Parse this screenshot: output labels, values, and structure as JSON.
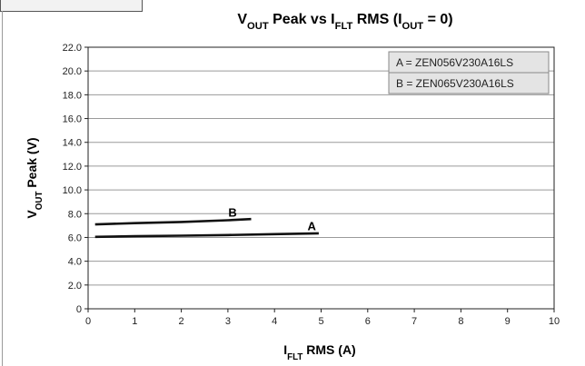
{
  "chart_data": {
    "type": "line",
    "title": {
      "parts": [
        {
          "t": "V",
          "sub": false
        },
        {
          "t": "OUT",
          "sub": true
        },
        {
          "t": " Peak vs I",
          "sub": false
        },
        {
          "t": "FLT",
          "sub": true
        },
        {
          "t": " RMS (I",
          "sub": false
        },
        {
          "t": "OUT",
          "sub": true
        },
        {
          "t": " = 0)",
          "sub": false
        }
      ]
    },
    "xlabel": {
      "parts": [
        {
          "t": "I",
          "sub": false
        },
        {
          "t": "FLT",
          "sub": true
        },
        {
          "t": " RMS (A)",
          "sub": false
        }
      ]
    },
    "ylabel": {
      "parts": [
        {
          "t": "V",
          "sub": false
        },
        {
          "t": "OUT",
          "sub": true
        },
        {
          "t": " Peak (V)",
          "sub": false
        }
      ]
    },
    "xlim": [
      0,
      10
    ],
    "ylim": [
      0,
      22
    ],
    "x_ticks": [
      "0",
      "1",
      "2",
      "3",
      "4",
      "5",
      "6",
      "7",
      "8",
      "9",
      "10"
    ],
    "y_ticks": [
      "0",
      "2.0",
      "4.0",
      "6.0",
      "8.0",
      "10.0",
      "12.0",
      "14.0",
      "16.0",
      "18.0",
      "20.0",
      "22.0"
    ],
    "grid": "horizontal",
    "legend": {
      "placement": "top-right",
      "entries": [
        "A = ZEN056V230A16LS",
        "B = ZEN065V230A16LS"
      ]
    },
    "series": [
      {
        "name": "A",
        "x": [
          0.15,
          1,
          2,
          3,
          4,
          4.95
        ],
        "y": [
          6.05,
          6.1,
          6.15,
          6.2,
          6.28,
          6.35
        ]
      },
      {
        "name": "B",
        "x": [
          0.15,
          1,
          2,
          3,
          3.5
        ],
        "y": [
          7.1,
          7.2,
          7.3,
          7.45,
          7.55
        ]
      }
    ],
    "series_labels": [
      {
        "text": "A",
        "x": 4.8,
        "y": 6.6
      },
      {
        "text": "B",
        "x": 3.1,
        "y": 7.75
      }
    ],
    "line_color": "#111111",
    "grid_color": "#9a9a9a"
  }
}
